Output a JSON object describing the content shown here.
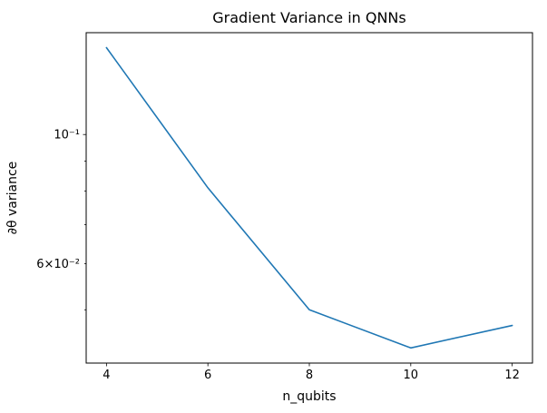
{
  "chart_data": {
    "type": "line",
    "title": "Gradient Variance in QNNs",
    "xlabel": "n_qubits",
    "ylabel": "∂θ variance",
    "x": [
      4,
      6,
      8,
      10,
      12
    ],
    "y": [
      0.141,
      0.081,
      0.05,
      0.043,
      0.047
    ],
    "series_name": "gradient-variance",
    "xlim": [
      3.6,
      12.4
    ],
    "ylim": [
      0.0405,
      0.1496
    ],
    "yscale": "log",
    "grid": false,
    "legend": "none",
    "line_color": "#1f77b4",
    "x_ticks": [
      {
        "value": 4,
        "label": "4"
      },
      {
        "value": 6,
        "label": "6"
      },
      {
        "value": 8,
        "label": "8"
      },
      {
        "value": 10,
        "label": "10"
      },
      {
        "value": 12,
        "label": "12"
      }
    ],
    "y_major_ticks": [
      {
        "value": 0.1,
        "label": "10⁻¹"
      }
    ],
    "y_minor_ticks": [
      {
        "value": 0.05,
        "label": ""
      },
      {
        "value": 0.06,
        "label": "6×10⁻²"
      },
      {
        "value": 0.07,
        "label": ""
      },
      {
        "value": 0.08,
        "label": ""
      },
      {
        "value": 0.09,
        "label": ""
      }
    ]
  }
}
